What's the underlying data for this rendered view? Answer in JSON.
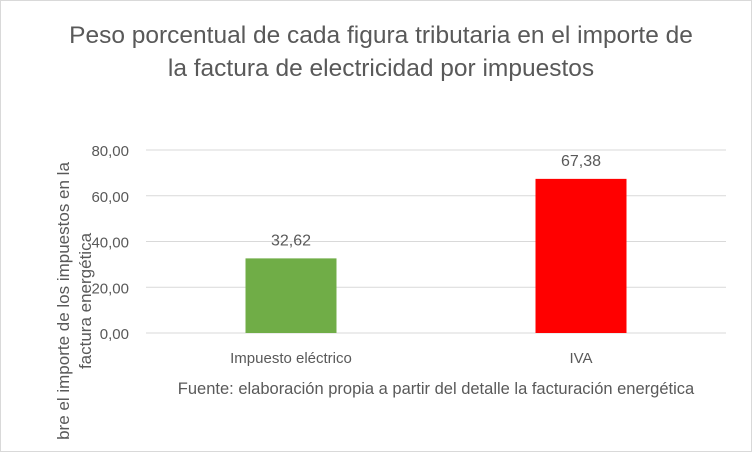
{
  "chart_data": {
    "type": "bar",
    "title": "Peso porcentual de cada figura tributaria en el importe de la factura de electricidad por impuestos",
    "ylabel": "bre el importe de los impuestos en la factura energética",
    "xlabel": "",
    "caption": "Fuente: elaboración propia a partir del detalle la facturación energética",
    "categories": [
      "Impuesto eléctrico",
      "IVA"
    ],
    "values": [
      32.62,
      67.38
    ],
    "value_labels": [
      "32,62",
      "67,38"
    ],
    "colors": [
      "#70ad47",
      "#ff0000"
    ],
    "ylim": [
      0,
      80
    ],
    "yticks": [
      0,
      20,
      40,
      60,
      80
    ],
    "ytick_labels": [
      "0,00",
      "20,00",
      "40,00",
      "60,00",
      "80,00"
    ],
    "grid": true,
    "gridline_color": "#d9d9d9",
    "legend": "none"
  }
}
